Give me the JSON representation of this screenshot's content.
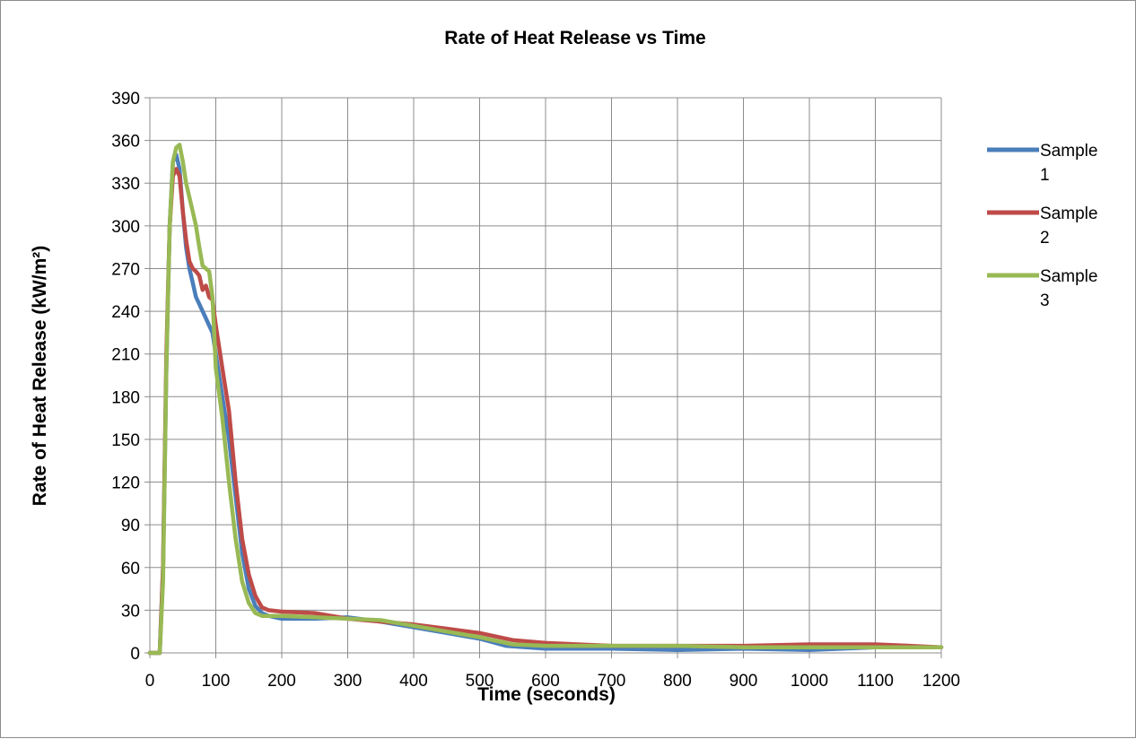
{
  "chart_data": {
    "type": "line",
    "title": "Rate of Heat Release vs Time",
    "xlabel": "Time (seconds)",
    "ylabel": "Rate of Heat Release (kW/m²)",
    "xlim": [
      0,
      1200
    ],
    "ylim": [
      0,
      390
    ],
    "xticks": [
      0,
      100,
      200,
      300,
      400,
      500,
      600,
      700,
      800,
      900,
      1000,
      1100,
      1200
    ],
    "yticks": [
      0,
      30,
      60,
      90,
      120,
      150,
      180,
      210,
      240,
      270,
      300,
      330,
      360,
      390
    ],
    "grid": true,
    "legend_position": "right",
    "series": [
      {
        "name": "Sample 1",
        "color": "#4a7ebb",
        "x": [
          0,
          15,
          20,
          25,
          30,
          35,
          40,
          45,
          50,
          55,
          60,
          65,
          70,
          75,
          80,
          85,
          90,
          95,
          100,
          110,
          120,
          130,
          140,
          150,
          160,
          170,
          180,
          200,
          250,
          300,
          350,
          400,
          450,
          500,
          540,
          600,
          700,
          800,
          900,
          1000,
          1100,
          1200
        ],
        "y": [
          0,
          0,
          60,
          200,
          300,
          345,
          350,
          340,
          310,
          285,
          270,
          260,
          250,
          245,
          240,
          235,
          230,
          225,
          210,
          180,
          150,
          110,
          70,
          45,
          33,
          28,
          26,
          24,
          24,
          25,
          22,
          18,
          14,
          10,
          5,
          3,
          3,
          2,
          3,
          2,
          4,
          4
        ]
      },
      {
        "name": "Sample 2",
        "color": "#be4b48",
        "x": [
          0,
          15,
          20,
          25,
          30,
          35,
          40,
          45,
          50,
          55,
          60,
          65,
          70,
          75,
          80,
          85,
          90,
          95,
          100,
          110,
          120,
          130,
          140,
          150,
          160,
          170,
          180,
          200,
          250,
          300,
          350,
          400,
          450,
          500,
          550,
          600,
          700,
          800,
          900,
          1000,
          1100,
          1200
        ],
        "y": [
          0,
          0,
          60,
          210,
          300,
          335,
          340,
          335,
          310,
          290,
          275,
          270,
          268,
          265,
          255,
          258,
          250,
          248,
          230,
          200,
          170,
          120,
          80,
          55,
          40,
          32,
          30,
          29,
          28,
          24,
          22,
          20,
          17,
          14,
          9,
          7,
          5,
          5,
          5,
          6,
          6,
          4
        ]
      },
      {
        "name": "Sample 3",
        "color": "#98b954",
        "x": [
          0,
          15,
          20,
          25,
          30,
          35,
          40,
          45,
          50,
          55,
          60,
          65,
          70,
          75,
          80,
          85,
          90,
          95,
          100,
          110,
          120,
          130,
          140,
          150,
          160,
          170,
          180,
          200,
          250,
          300,
          350,
          400,
          450,
          500,
          550,
          600,
          700,
          800,
          900,
          1000,
          1100,
          1200
        ],
        "y": [
          0,
          0,
          50,
          200,
          300,
          345,
          355,
          357,
          345,
          330,
          320,
          310,
          300,
          285,
          272,
          270,
          268,
          250,
          200,
          165,
          120,
          80,
          50,
          35,
          28,
          26,
          26,
          26,
          25,
          24,
          23,
          19,
          15,
          11,
          6,
          5,
          5,
          5,
          4,
          4,
          4,
          4
        ]
      }
    ]
  }
}
